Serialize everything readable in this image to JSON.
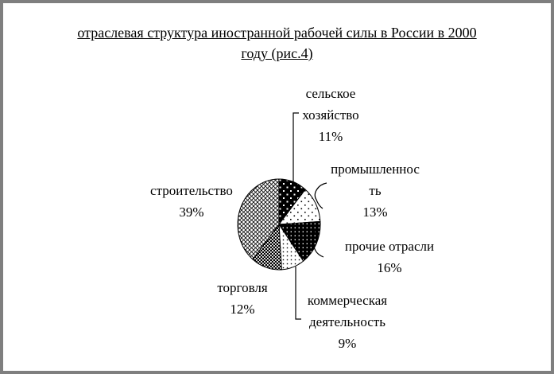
{
  "frame": {
    "border_color": "#7f7f7f",
    "background_color": "#ffffff",
    "ink_color": "#000000"
  },
  "title": {
    "lines": [
      "отраслевая структура иностранной рабочей силы в России в 2000",
      "году (рис.4)"
    ]
  },
  "chart_data": {
    "type": "pie",
    "title": "отраслевая структура иностранной рабочей силы в России в 2000 году (рис.4)",
    "unit": "%",
    "start_at": "12-o'clock",
    "direction": "clockwise",
    "legend_position": "none",
    "labels_outside": true,
    "slices": [
      {
        "label": "сельское хозяйство",
        "value": 11,
        "pattern": "black-white-dots"
      },
      {
        "label": "промышленность",
        "value": 13,
        "pattern": "white-black-dots-sparse"
      },
      {
        "label": "прочие отрасли",
        "value": 16,
        "pattern": "black-white-dots-dense"
      },
      {
        "label": "коммерческая деятельность",
        "value": 9,
        "pattern": "white-black-dots-dense"
      },
      {
        "label": "торговля",
        "value": 12,
        "pattern": "dark-checker"
      },
      {
        "label": "строительство",
        "value": 39,
        "pattern": "light-diagonal-lattice"
      }
    ]
  },
  "labels": {
    "agriculture": {
      "lines": [
        "сельское",
        "хозяйство",
        "11%"
      ]
    },
    "industry": {
      "lines": [
        "промышленнос",
        "ть",
        "13%"
      ]
    },
    "other": {
      "lines": [
        "прочие отрасли",
        "16%"
      ]
    },
    "commerce": {
      "lines": [
        "коммерческая",
        "деятельность",
        "9%"
      ]
    },
    "trade": {
      "lines": [
        "торговля",
        "12%"
      ]
    },
    "construction": {
      "lines": [
        "строительство",
        "39%"
      ]
    }
  }
}
